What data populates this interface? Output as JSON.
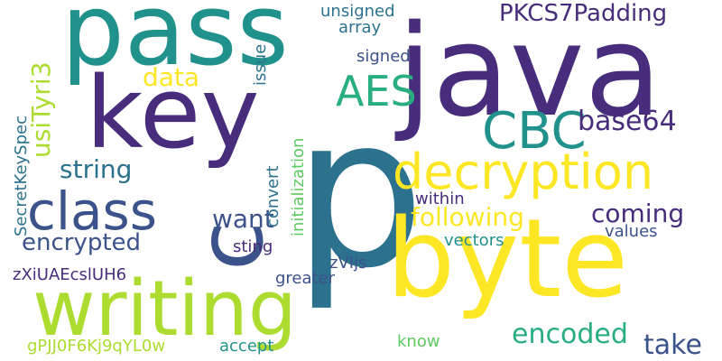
{
  "colors": {
    "background": "#ffffff",
    "palette": [
      "#440154",
      "#472d7b",
      "#3b528b",
      "#2c728e",
      "#21918c",
      "#28ae80",
      "#5ec962",
      "#addc30",
      "#fde725"
    ]
  },
  "words": [
    {
      "text": "p",
      "color": "#2c728e"
    },
    {
      "text": "java",
      "color": "#472d7b"
    },
    {
      "text": "byte",
      "color": "#fde725"
    },
    {
      "text": "pass",
      "color": "#21918c"
    },
    {
      "text": "key",
      "color": "#472d7b"
    },
    {
      "text": "c",
      "color": "#3b528b"
    },
    {
      "text": "writing",
      "color": "#addc30"
    },
    {
      "text": "decryption",
      "color": "#fde725"
    },
    {
      "text": "class",
      "color": "#3b528b"
    },
    {
      "text": "CBC",
      "color": "#21918c"
    },
    {
      "text": "AES",
      "color": "#28ae80"
    },
    {
      "text": "PKCS7Padding",
      "color": "#472d7b"
    },
    {
      "text": "base64",
      "color": "#472d7b"
    },
    {
      "text": "following",
      "color": "#fde725"
    },
    {
      "text": "string",
      "color": "#2c728e"
    },
    {
      "text": "encrypted",
      "color": "#3b528b"
    },
    {
      "text": "want",
      "color": "#3b528b"
    },
    {
      "text": "coming",
      "color": "#472d7b"
    },
    {
      "text": "data",
      "color": "#fde725"
    },
    {
      "text": "encoded",
      "color": "#28ae80"
    },
    {
      "text": "take",
      "color": "#3b528b"
    },
    {
      "text": "usiTyri3",
      "color": "#addc30"
    },
    {
      "text": "SecretKeySpec",
      "color": "#2c728e"
    },
    {
      "text": "unsigned",
      "color": "#2c728e"
    },
    {
      "text": "array",
      "color": "#2c728e"
    },
    {
      "text": "signed",
      "color": "#3b528b"
    },
    {
      "text": "issue",
      "color": "#2c728e"
    },
    {
      "text": "initialization",
      "color": "#5ec962"
    },
    {
      "text": "convert",
      "color": "#2c728e"
    },
    {
      "text": "within",
      "color": "#472d7b"
    },
    {
      "text": "values",
      "color": "#3b528b"
    },
    {
      "text": "vectors",
      "color": "#21918c"
    },
    {
      "text": "sting",
      "color": "#472d7b"
    },
    {
      "text": "zVIjs",
      "color": "#3b528b"
    },
    {
      "text": "greater",
      "color": "#3b528b"
    },
    {
      "text": "zXiUAEcslUH6",
      "color": "#472d7b"
    },
    {
      "text": "gPJJ0F6Kj9qYL0w",
      "color": "#addc30"
    },
    {
      "text": "accept",
      "color": "#21918c"
    },
    {
      "text": "know",
      "color": "#5ec962"
    }
  ]
}
